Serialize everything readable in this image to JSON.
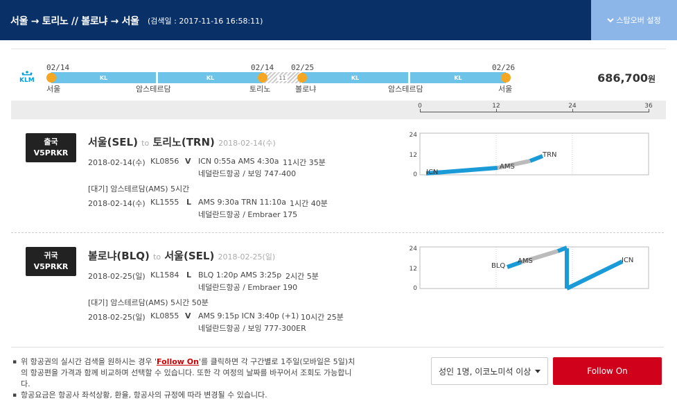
{
  "header": {
    "route": "서울 → 토리노 // 볼로냐 → 서울",
    "search_date": "(검색일 : 2017-11-16 16:58:11)",
    "stopover_label": "스탑오버 설정"
  },
  "timeline": {
    "airline_logo_text": "KLM",
    "points": [
      {
        "date": "02/14",
        "city": "서울"
      },
      {
        "date": "",
        "city": "암스테르담"
      },
      {
        "date": "02/14",
        "city": "토리노"
      },
      {
        "date": "02/25",
        "city": "볼로냐"
      },
      {
        "date": "",
        "city": "암스테르담"
      },
      {
        "date": "02/26",
        "city": "서울"
      }
    ],
    "segments": [
      "KL",
      "KL",
      "KL",
      "KL"
    ],
    "stay_label": "11",
    "price": "686,700",
    "price_unit": "원",
    "scale_ticks": [
      "0",
      "12",
      "24",
      "36"
    ]
  },
  "journeys": [
    {
      "badge_type": "출국",
      "badge_code": "V5PRKR",
      "from": "서울(SEL)",
      "to_word": "to",
      "to": "토리노(TRN)",
      "date": "2018-02-14(수)",
      "flights": [
        {
          "date": "2018-02-14(수)",
          "flight_no": "KL0856",
          "class": "V",
          "times": "ICN 0:55a AMS 4:30a",
          "duration": "11시간 35분",
          "aircraft": "네덜란드항공 / 보잉 747-400"
        },
        {
          "date": "2018-02-14(수)",
          "flight_no": "KL1555",
          "class": "L",
          "times": "AMS 9:30a TRN 11:10a",
          "duration": "1시간 40분",
          "aircraft": "네덜란드항공 / Embraer 175"
        }
      ],
      "layover": "[대기] 암스테르담(AMS)   5시간",
      "chart": {
        "y_ticks": [
          "24",
          "12",
          "0"
        ],
        "labels": [
          "ICN",
          "AMS",
          "TRN"
        ],
        "points_hours": [
          [
            0,
            0
          ],
          [
            11.6,
            2.6
          ],
          [
            16.7,
            7
          ]
        ],
        "series_colors": [
          "#1a9ad6",
          "#bbbbbb",
          "#1a9ad6"
        ]
      }
    },
    {
      "badge_type": "귀국",
      "badge_code": "V5PRKR",
      "from": "볼로냐(BLQ)",
      "to_word": "to",
      "to": "서울(SEL)",
      "date": "2018-02-25(일)",
      "flights": [
        {
          "date": "2018-02-25(일)",
          "flight_no": "KL1584",
          "class": "L",
          "times": "BLQ 1:20p AMS 3:25p",
          "duration": "2시간 5분",
          "aircraft": "네덜란드항공 / Embraer 190"
        },
        {
          "date": "2018-02-25(일)",
          "flight_no": "KL0855",
          "class": "V",
          "times": "AMS 9:15p ICN 3:40p (+1)",
          "duration": "10시간 25분",
          "aircraft": "네덜란드항공 / 보잉 777-300ER"
        }
      ],
      "layover": "[대기] 암스테르담(AMS)   5시간 50분",
      "chart": {
        "y_ticks": [
          "24",
          "12",
          "0"
        ],
        "labels": [
          "BLQ",
          "AMS",
          "ICN"
        ],
        "series_colors": [
          "#1a9ad6",
          "#bbbbbb",
          "#1a9ad6"
        ]
      }
    }
  ],
  "footer": {
    "note1_pre": "위 항공권의 실시간 검색을 원하시는 경우 '",
    "note1_link": "Follow On",
    "note1_post": "'를 클릭하면 각 구간별로 1주일(모바일은 5일)치의 항공편을 가격과 함께 비교하며 선택할 수 있습니다. 또한 각 여정의 날짜를 바꾸어서 조회도 가능합니다.",
    "note2": "항공요금은 항공사 좌석상황, 환율, 항공사의 규정에 따라 변경될 수 있습니다.",
    "pax_select": "성인 1명, 이코노미석 이상",
    "follow_on_button": "Follow On"
  }
}
